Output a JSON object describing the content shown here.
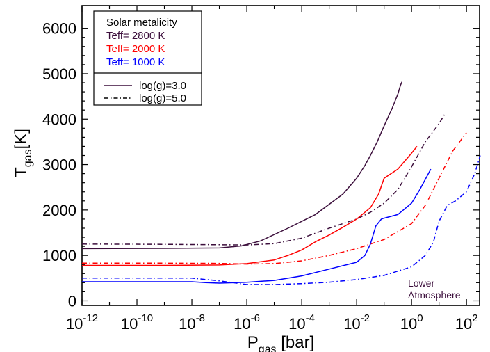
{
  "chart_data": {
    "type": "line",
    "title": "",
    "xlabel_main": "P",
    "xlabel_sub": "gas",
    "xlabel_unit": " [bar]",
    "ylabel_main": "T",
    "ylabel_sub": "gas",
    "ylabel_unit": "[K]",
    "x_scale": "log",
    "xlim": [
      1e-12,
      300
    ],
    "ylim": [
      -100,
      6500
    ],
    "x_ticks": [
      {
        "exp": -12,
        "base": "10",
        "sup": "-12"
      },
      {
        "exp": -10,
        "base": "10",
        "sup": "-10"
      },
      {
        "exp": -8,
        "base": "10",
        "sup": "-8"
      },
      {
        "exp": -6,
        "base": "10",
        "sup": "-6"
      },
      {
        "exp": -4,
        "base": "10",
        "sup": "-4"
      },
      {
        "exp": -2,
        "base": "10",
        "sup": "-2"
      },
      {
        "exp": 0,
        "base": "10",
        "sup": "0"
      },
      {
        "exp": 2,
        "base": "10",
        "sup": "2"
      }
    ],
    "y_ticks": [
      {
        "value": 0,
        "label": "0"
      },
      {
        "value": 1000,
        "label": "1000"
      },
      {
        "value": 2000,
        "label": "2000"
      },
      {
        "value": 3000,
        "label": "3000"
      },
      {
        "value": 4000,
        "label": "4000"
      },
      {
        "value": 5000,
        "label": "5000"
      },
      {
        "value": 6000,
        "label": "6000"
      }
    ],
    "grid": false,
    "legend_placement": "top-left",
    "legend": {
      "header": "Solar metalicity",
      "teff_entries": [
        {
          "label": "Teff= 2800 K",
          "color": "#3c0f3c"
        },
        {
          "label": "Teff= 2000 K",
          "color": "#ff0000"
        },
        {
          "label": "Teff= 1000 K",
          "color": "#0000ff"
        }
      ],
      "style_entries": [
        {
          "label": "log(g)=3.0",
          "dash": "solid"
        },
        {
          "label": "log(g)=5.0",
          "dash": "dashdot"
        }
      ]
    },
    "annotation": {
      "lines": [
        "Lower",
        "Atmosphere"
      ],
      "color": "#3c0f3c"
    },
    "series": [
      {
        "teff": "2800 K",
        "logg": "3.0",
        "color": "#3c0f3c",
        "dash": "solid",
        "x_log10": [
          -12,
          -9,
          -7,
          -6.2,
          -5.5,
          -4.5,
          -3.5,
          -2.5,
          -2,
          -1.7,
          -1.5,
          -1.4,
          -1.25,
          -1,
          -0.7,
          -0.5,
          -0.4,
          -0.35
        ],
        "y": [
          1150,
          1155,
          1165,
          1210,
          1320,
          1600,
          1900,
          2350,
          2700,
          2980,
          3200,
          3320,
          3500,
          3850,
          4250,
          4550,
          4750,
          4820
        ]
      },
      {
        "teff": "2800 K",
        "logg": "5.0",
        "color": "#3c0f3c",
        "dash": "dashdot",
        "x_log10": [
          -12,
          -9,
          -7,
          -6,
          -5,
          -4,
          -3,
          -2,
          -1.5,
          -1,
          -0.5,
          0,
          0.5,
          1,
          1.2
        ],
        "y": [
          1250,
          1245,
          1235,
          1230,
          1260,
          1380,
          1600,
          1800,
          1950,
          2150,
          2450,
          2950,
          3500,
          3900,
          4100
        ]
      },
      {
        "teff": "2000 K",
        "logg": "3.0",
        "color": "#ff0000",
        "dash": "solid",
        "x_log10": [
          -12,
          -9,
          -7,
          -6,
          -5,
          -4.5,
          -4,
          -3.5,
          -3,
          -2.5,
          -2,
          -1.5,
          -1.2,
          -1,
          -0.5,
          0,
          0.2
        ],
        "y": [
          780,
          780,
          790,
          820,
          900,
          1000,
          1120,
          1300,
          1450,
          1620,
          1800,
          2050,
          2350,
          2700,
          2900,
          3250,
          3400
        ]
      },
      {
        "teff": "2000 K",
        "logg": "5.0",
        "color": "#ff0000",
        "dash": "dashdot",
        "x_log10": [
          -12,
          -9,
          -7,
          -6,
          -5,
          -4,
          -3,
          -2,
          -1,
          0,
          0.5,
          1,
          1.5,
          2
        ],
        "y": [
          830,
          830,
          825,
          810,
          820,
          880,
          1000,
          1150,
          1350,
          1700,
          2100,
          2700,
          3300,
          3700
        ]
      },
      {
        "teff": "1000 K",
        "logg": "3.0",
        "color": "#0000ff",
        "dash": "solid",
        "x_log10": [
          -12,
          -9,
          -8,
          -7.5,
          -7,
          -6,
          -5,
          -4,
          -3,
          -2,
          -1.7,
          -1.5,
          -1.3,
          -1.1,
          -1,
          -0.5,
          0,
          0.3,
          0.7
        ],
        "y": [
          420,
          420,
          420,
          400,
          390,
          410,
          450,
          550,
          700,
          850,
          1000,
          1250,
          1650,
          1800,
          1820,
          1900,
          2150,
          2450,
          2900
        ]
      },
      {
        "teff": "1000 K",
        "logg": "5.0",
        "color": "#0000ff",
        "dash": "dashdot",
        "x_log10": [
          -12,
          -9,
          -8,
          -7,
          -6,
          -5,
          -4,
          -3,
          -2,
          -1,
          0,
          0.5,
          0.8,
          1,
          1.3,
          1.6,
          2,
          2.3,
          2.5
        ],
        "y": [
          500,
          500,
          500,
          440,
          360,
          360,
          380,
          410,
          470,
          560,
          750,
          1000,
          1300,
          1750,
          2100,
          2200,
          2400,
          2800,
          3200
        ]
      }
    ]
  }
}
